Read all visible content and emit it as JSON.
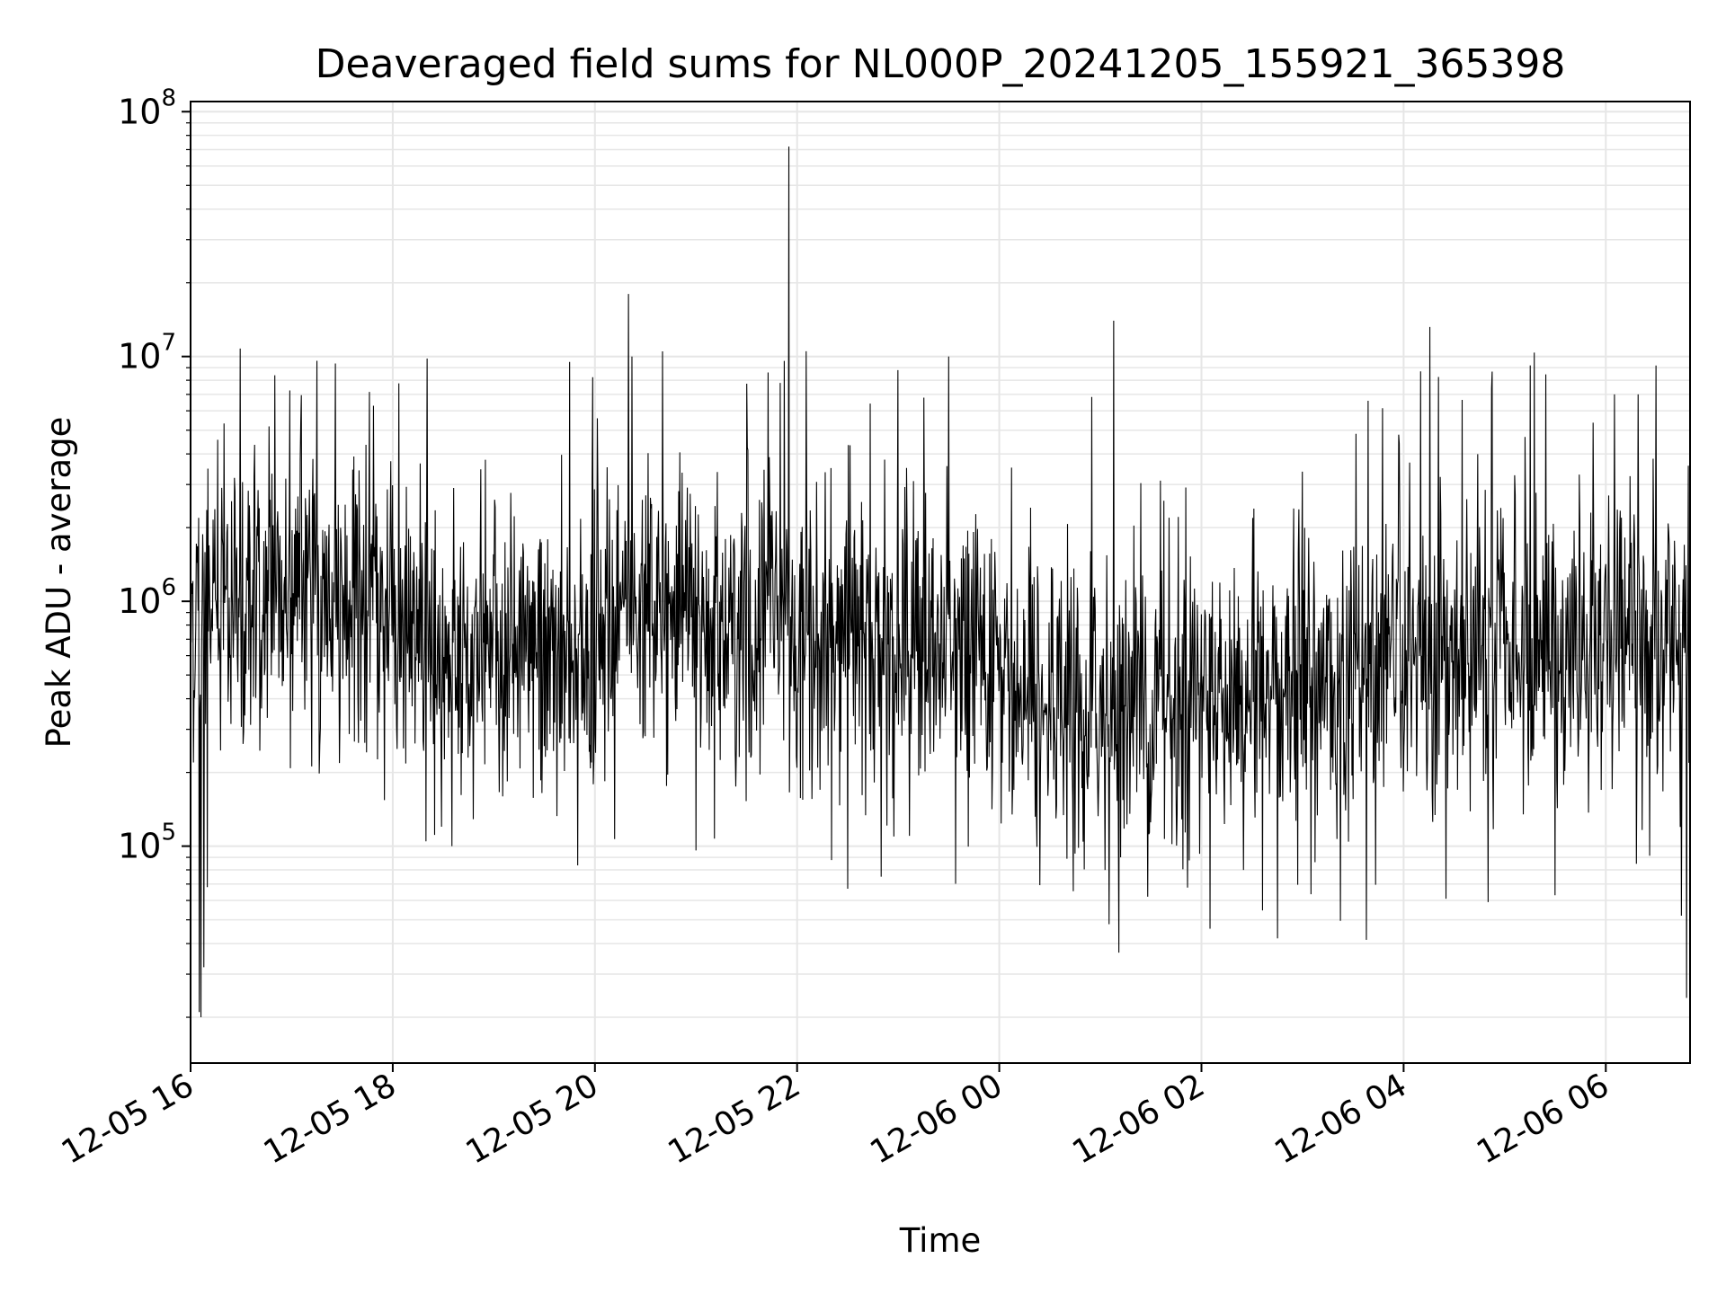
{
  "chart_data": {
    "type": "line",
    "title": "Deaveraged field sums for NL000P_20241205_155921_365398",
    "xlabel": "Time",
    "ylabel": "Peak ADU - average",
    "yscale": "log",
    "ylim": [
      13000,
      110000000
    ],
    "xlim": [
      "2024-12-05 16:00",
      "2024-12-06 06:50"
    ],
    "grid": true,
    "line_color": "#000000",
    "grid_color": "#e6e6e6",
    "x_ticks": [
      {
        "t": "2024-12-05 16:00",
        "label": "12-05 16"
      },
      {
        "t": "2024-12-05 18:00",
        "label": "12-05 18"
      },
      {
        "t": "2024-12-05 20:00",
        "label": "12-05 20"
      },
      {
        "t": "2024-12-05 22:00",
        "label": "12-05 22"
      },
      {
        "t": "2024-12-06 00:00",
        "label": "12-06 00"
      },
      {
        "t": "2024-12-06 02:00",
        "label": "12-06 02"
      },
      {
        "t": "2024-12-06 04:00",
        "label": "12-06 04"
      },
      {
        "t": "2024-12-06 06:00",
        "label": "12-06 06"
      }
    ],
    "y_ticks": [
      {
        "value": 100000,
        "base": "10",
        "exp": "5"
      },
      {
        "value": 1000000,
        "base": "10",
        "exp": "6"
      },
      {
        "value": 10000000,
        "base": "10",
        "exp": "7"
      },
      {
        "value": 100000000,
        "base": "10",
        "exp": "8"
      }
    ],
    "baseline_trend": [
      {
        "t": "2024-12-05 16:00",
        "y": 900000
      },
      {
        "t": "2024-12-05 16:40",
        "y": 1200000
      },
      {
        "t": "2024-12-05 17:30",
        "y": 1000000
      },
      {
        "t": "2024-12-05 18:30",
        "y": 550000
      },
      {
        "t": "2024-12-05 19:30",
        "y": 550000
      },
      {
        "t": "2024-12-05 20:30",
        "y": 800000
      },
      {
        "t": "2024-12-05 21:30",
        "y": 750000
      },
      {
        "t": "2024-12-05 22:30",
        "y": 650000
      },
      {
        "t": "2024-12-05 23:30",
        "y": 600000
      },
      {
        "t": "2024-12-06 00:30",
        "y": 330000
      },
      {
        "t": "2024-12-06 01:30",
        "y": 380000
      },
      {
        "t": "2024-12-06 02:30",
        "y": 420000
      },
      {
        "t": "2024-12-06 03:30",
        "y": 450000
      },
      {
        "t": "2024-12-06 04:30",
        "y": 600000
      },
      {
        "t": "2024-12-06 05:30",
        "y": 650000
      },
      {
        "t": "2024-12-06 06:30",
        "y": 700000
      },
      {
        "t": "2024-12-06 06:50",
        "y": 600000
      }
    ],
    "notable_points": [
      {
        "t": "2024-12-05 16:05",
        "y": 21000
      },
      {
        "t": "2024-12-05 16:06",
        "y": 20000
      },
      {
        "t": "2024-12-05 16:08",
        "y": 32000
      },
      {
        "t": "2024-12-05 16:10",
        "y": 68000
      },
      {
        "t": "2024-12-05 17:15",
        "y": 9600000
      },
      {
        "t": "2024-12-05 18:35",
        "y": 100000
      },
      {
        "t": "2024-12-05 19:45",
        "y": 9500000
      },
      {
        "t": "2024-12-05 20:20",
        "y": 18000000
      },
      {
        "t": "2024-12-05 20:22",
        "y": 10000000
      },
      {
        "t": "2024-12-05 20:40",
        "y": 10500000
      },
      {
        "t": "2024-12-05 21:00",
        "y": 96000
      },
      {
        "t": "2024-12-05 21:50",
        "y": 7800000
      },
      {
        "t": "2024-12-05 21:55",
        "y": 72000000
      },
      {
        "t": "2024-12-05 22:30",
        "y": 67000
      },
      {
        "t": "2024-12-05 22:50",
        "y": 75000
      },
      {
        "t": "2024-12-05 23:00",
        "y": 8800000
      },
      {
        "t": "2024-12-05 23:30",
        "y": 10000000
      },
      {
        "t": "2024-12-06 01:05",
        "y": 48000
      },
      {
        "t": "2024-12-06 01:08",
        "y": 14000000
      },
      {
        "t": "2024-12-06 02:05",
        "y": 46000
      },
      {
        "t": "2024-12-06 02:45",
        "y": 42000
      },
      {
        "t": "2024-12-06 04:10",
        "y": 8700000
      },
      {
        "t": "2024-12-06 04:25",
        "y": 61000
      },
      {
        "t": "2024-12-06 05:15",
        "y": 9200000
      },
      {
        "t": "2024-12-06 05:30",
        "y": 63000
      },
      {
        "t": "2024-12-06 06:05",
        "y": 7000000
      },
      {
        "t": "2024-12-06 06:45",
        "y": 52000
      },
      {
        "t": "2024-12-06 06:48",
        "y": 24000
      }
    ]
  }
}
